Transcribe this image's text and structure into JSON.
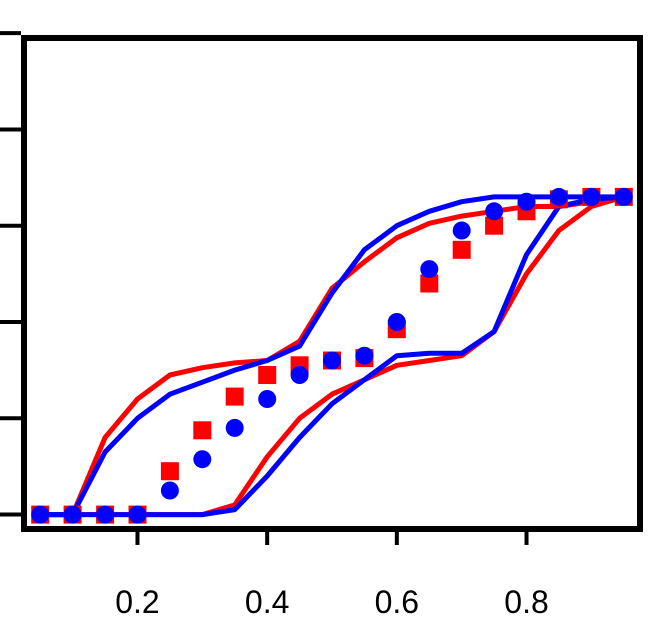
{
  "chart_data": {
    "type": "line",
    "title": "",
    "xlabel": "",
    "ylabel": "",
    "xlim": [
      0.025,
      0.975
    ],
    "ylim": [
      -0.03,
      0.99
    ],
    "x_ticks": [
      0.2,
      0.4,
      0.6,
      0.8
    ],
    "x_tick_labels": [
      "0.2",
      "0.4",
      "0.6",
      "0.8"
    ],
    "y_ticks": [
      0.0,
      0.2,
      0.4,
      0.6,
      0.8,
      1.0
    ],
    "y_tick_labels": [],
    "grid": false,
    "colors": {
      "red": "#ff0000",
      "blue": "#0000ff"
    },
    "series": [
      {
        "color": "#ff0000",
        "kind": "line",
        "x": [
          0.05,
          0.1,
          0.15,
          0.2,
          0.25,
          0.3,
          0.35,
          0.4,
          0.45,
          0.5,
          0.55,
          0.6,
          0.65,
          0.7,
          0.75,
          0.8,
          0.85,
          0.9,
          0.95
        ],
        "y": [
          0.0,
          0.0,
          0.16,
          0.24,
          0.29,
          0.305,
          0.315,
          0.32,
          0.36,
          0.47,
          0.525,
          0.575,
          0.605,
          0.62,
          0.63,
          0.64,
          0.64,
          0.65,
          0.66
        ]
      },
      {
        "color": "#ff0000",
        "kind": "line",
        "x": [
          0.05,
          0.1,
          0.15,
          0.2,
          0.25,
          0.3,
          0.35,
          0.4,
          0.45,
          0.5,
          0.55,
          0.6,
          0.65,
          0.7,
          0.75,
          0.8,
          0.85,
          0.9,
          0.95
        ],
        "y": [
          0.0,
          0.0,
          0.0,
          0.0,
          0.0,
          0.0,
          0.02,
          0.12,
          0.2,
          0.25,
          0.28,
          0.31,
          0.32,
          0.33,
          0.38,
          0.5,
          0.59,
          0.64,
          0.66
        ]
      },
      {
        "color": "#0000ff",
        "kind": "line",
        "x": [
          0.05,
          0.1,
          0.15,
          0.2,
          0.25,
          0.3,
          0.35,
          0.4,
          0.45,
          0.5,
          0.55,
          0.6,
          0.65,
          0.7,
          0.75,
          0.8,
          0.85,
          0.9,
          0.95
        ],
        "y": [
          0.0,
          0.0,
          0.13,
          0.2,
          0.25,
          0.275,
          0.3,
          0.32,
          0.35,
          0.46,
          0.55,
          0.6,
          0.63,
          0.65,
          0.66,
          0.66,
          0.66,
          0.66,
          0.66
        ]
      },
      {
        "color": "#0000ff",
        "kind": "line",
        "x": [
          0.05,
          0.1,
          0.15,
          0.2,
          0.25,
          0.3,
          0.35,
          0.4,
          0.45,
          0.5,
          0.55,
          0.6,
          0.65,
          0.7,
          0.75,
          0.8,
          0.85,
          0.9,
          0.95
        ],
        "y": [
          0.0,
          0.0,
          0.0,
          0.0,
          0.0,
          0.0,
          0.01,
          0.08,
          0.16,
          0.23,
          0.28,
          0.33,
          0.335,
          0.335,
          0.38,
          0.54,
          0.64,
          0.655,
          0.66
        ]
      },
      {
        "color": "#ff0000",
        "kind": "points",
        "marker": "square",
        "x": [
          0.05,
          0.1,
          0.15,
          0.2,
          0.25,
          0.3,
          0.35,
          0.4,
          0.45,
          0.5,
          0.55,
          0.6,
          0.65,
          0.7,
          0.75,
          0.8,
          0.85,
          0.9,
          0.95
        ],
        "y": [
          0.0,
          0.0,
          0.0,
          0.0,
          0.09,
          0.175,
          0.245,
          0.29,
          0.31,
          0.32,
          0.325,
          0.385,
          0.48,
          0.55,
          0.6,
          0.63,
          0.655,
          0.66,
          0.66
        ]
      },
      {
        "color": "#0000ff",
        "kind": "points",
        "marker": "circle",
        "x": [
          0.05,
          0.1,
          0.15,
          0.2,
          0.25,
          0.3,
          0.35,
          0.4,
          0.45,
          0.5,
          0.55,
          0.6,
          0.65,
          0.7,
          0.75,
          0.8,
          0.85,
          0.9,
          0.95
        ],
        "y": [
          0.0,
          0.0,
          0.0,
          0.0,
          0.05,
          0.115,
          0.18,
          0.24,
          0.29,
          0.32,
          0.33,
          0.4,
          0.51,
          0.59,
          0.63,
          0.65,
          0.66,
          0.66,
          0.66
        ]
      }
    ]
  }
}
